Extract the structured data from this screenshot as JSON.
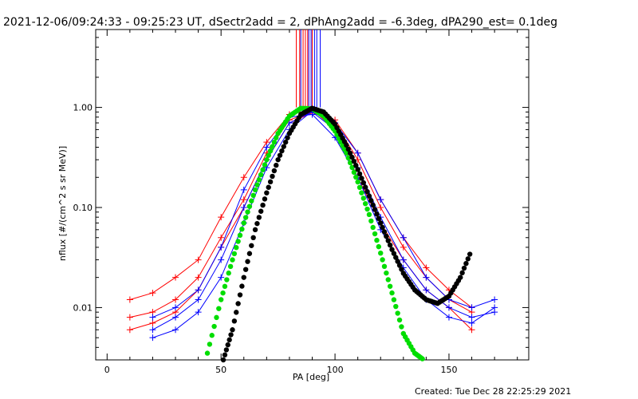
{
  "chart_data": {
    "type": "line",
    "title": "2021-12-06/09:24:33 - 09:25:23 UT, dSectr2add = 2, dPhAng2add = -6.3deg, dPA290_est=  0.1deg",
    "xlabel": "PA [deg]",
    "ylabel": "nflux [#/(cm^2 s sr MeV)]",
    "xlim": [
      -5,
      185
    ],
    "ylim": [
      0.003,
      6
    ],
    "yscale": "log",
    "xticks": [
      "0",
      "50",
      "100",
      "150"
    ],
    "yticks": [
      "0.01",
      "0.10",
      "1.00"
    ],
    "ytick_values": [
      0.01,
      0.1,
      1.0
    ],
    "colors": {
      "red": "#ff0000",
      "blue": "#0000ff",
      "green": "#00dd00",
      "black": "#000000"
    },
    "series": [
      {
        "color": "red",
        "x": [
          10,
          20,
          30,
          40,
          50,
          60,
          70,
          80,
          90,
          100,
          110,
          120,
          130,
          140,
          150,
          160
        ],
        "y": [
          0.008,
          0.009,
          0.012,
          0.02,
          0.05,
          0.12,
          0.35,
          0.75,
          0.9,
          0.7,
          0.3,
          0.1,
          0.04,
          0.02,
          0.012,
          0.009
        ]
      },
      {
        "color": "red",
        "x": [
          10,
          20,
          30,
          40,
          50,
          60,
          70,
          80,
          90,
          100,
          110,
          120,
          130,
          140,
          150,
          160
        ],
        "y": [
          0.012,
          0.014,
          0.02,
          0.03,
          0.08,
          0.2,
          0.45,
          0.85,
          0.95,
          0.6,
          0.2,
          0.07,
          0.03,
          0.015,
          0.01,
          0.006
        ]
      },
      {
        "color": "red",
        "x": [
          10,
          20,
          30,
          40,
          50,
          60,
          70,
          80,
          90,
          100,
          110,
          120,
          130,
          140,
          150,
          160
        ],
        "y": [
          0.006,
          0.007,
          0.009,
          0.015,
          0.04,
          0.1,
          0.3,
          0.7,
          0.88,
          0.75,
          0.35,
          0.12,
          0.05,
          0.025,
          0.015,
          0.01
        ]
      },
      {
        "color": "blue",
        "x": [
          20,
          30,
          40,
          50,
          60,
          70,
          80,
          90,
          100,
          110,
          120,
          130,
          140,
          150,
          160,
          170
        ],
        "y": [
          0.006,
          0.008,
          0.012,
          0.03,
          0.1,
          0.3,
          0.7,
          0.9,
          0.6,
          0.25,
          0.08,
          0.03,
          0.015,
          0.01,
          0.008,
          0.009
        ]
      },
      {
        "color": "blue",
        "x": [
          20,
          30,
          40,
          50,
          60,
          70,
          80,
          90,
          100,
          110,
          120,
          130,
          140,
          150,
          160,
          170
        ],
        "y": [
          0.005,
          0.006,
          0.009,
          0.02,
          0.07,
          0.25,
          0.6,
          0.92,
          0.7,
          0.35,
          0.12,
          0.05,
          0.02,
          0.012,
          0.01,
          0.012
        ]
      },
      {
        "color": "blue",
        "x": [
          20,
          30,
          40,
          50,
          60,
          70,
          80,
          90,
          100,
          110,
          120,
          130,
          140,
          150,
          160,
          170
        ],
        "y": [
          0.008,
          0.01,
          0.015,
          0.04,
          0.15,
          0.4,
          0.8,
          0.85,
          0.5,
          0.2,
          0.06,
          0.025,
          0.012,
          0.008,
          0.007,
          0.01
        ]
      }
    ],
    "fit_green": {
      "x": [
        44,
        50,
        55,
        60,
        65,
        70,
        75,
        80,
        85,
        90,
        95,
        100,
        105,
        110,
        115,
        120,
        125,
        130,
        135,
        139
      ],
      "y": [
        0.0035,
        0.012,
        0.03,
        0.07,
        0.15,
        0.3,
        0.55,
        0.82,
        0.98,
        0.97,
        0.82,
        0.58,
        0.35,
        0.18,
        0.085,
        0.035,
        0.014,
        0.0055,
        0.0035,
        0.003
      ]
    },
    "fit_black": {
      "x": [
        51,
        55,
        60,
        65,
        70,
        75,
        80,
        85,
        90,
        95,
        100,
        105,
        110,
        115,
        120,
        125,
        130,
        135,
        140,
        145,
        150,
        155,
        160
      ],
      "y": [
        0.003,
        0.006,
        0.02,
        0.06,
        0.14,
        0.3,
        0.55,
        0.85,
        0.98,
        0.9,
        0.68,
        0.42,
        0.24,
        0.13,
        0.07,
        0.038,
        0.022,
        0.015,
        0.012,
        0.011,
        0.013,
        0.02,
        0.038
      ]
    },
    "vlines": {
      "red_x": [
        83,
        84.5,
        86,
        87,
        88,
        90
      ],
      "blue_x": [
        85,
        88.5,
        89.5,
        91,
        92,
        93.5
      ]
    }
  },
  "footer": {
    "created": "Created: Tue Dec 28 22:25:29 2021"
  }
}
